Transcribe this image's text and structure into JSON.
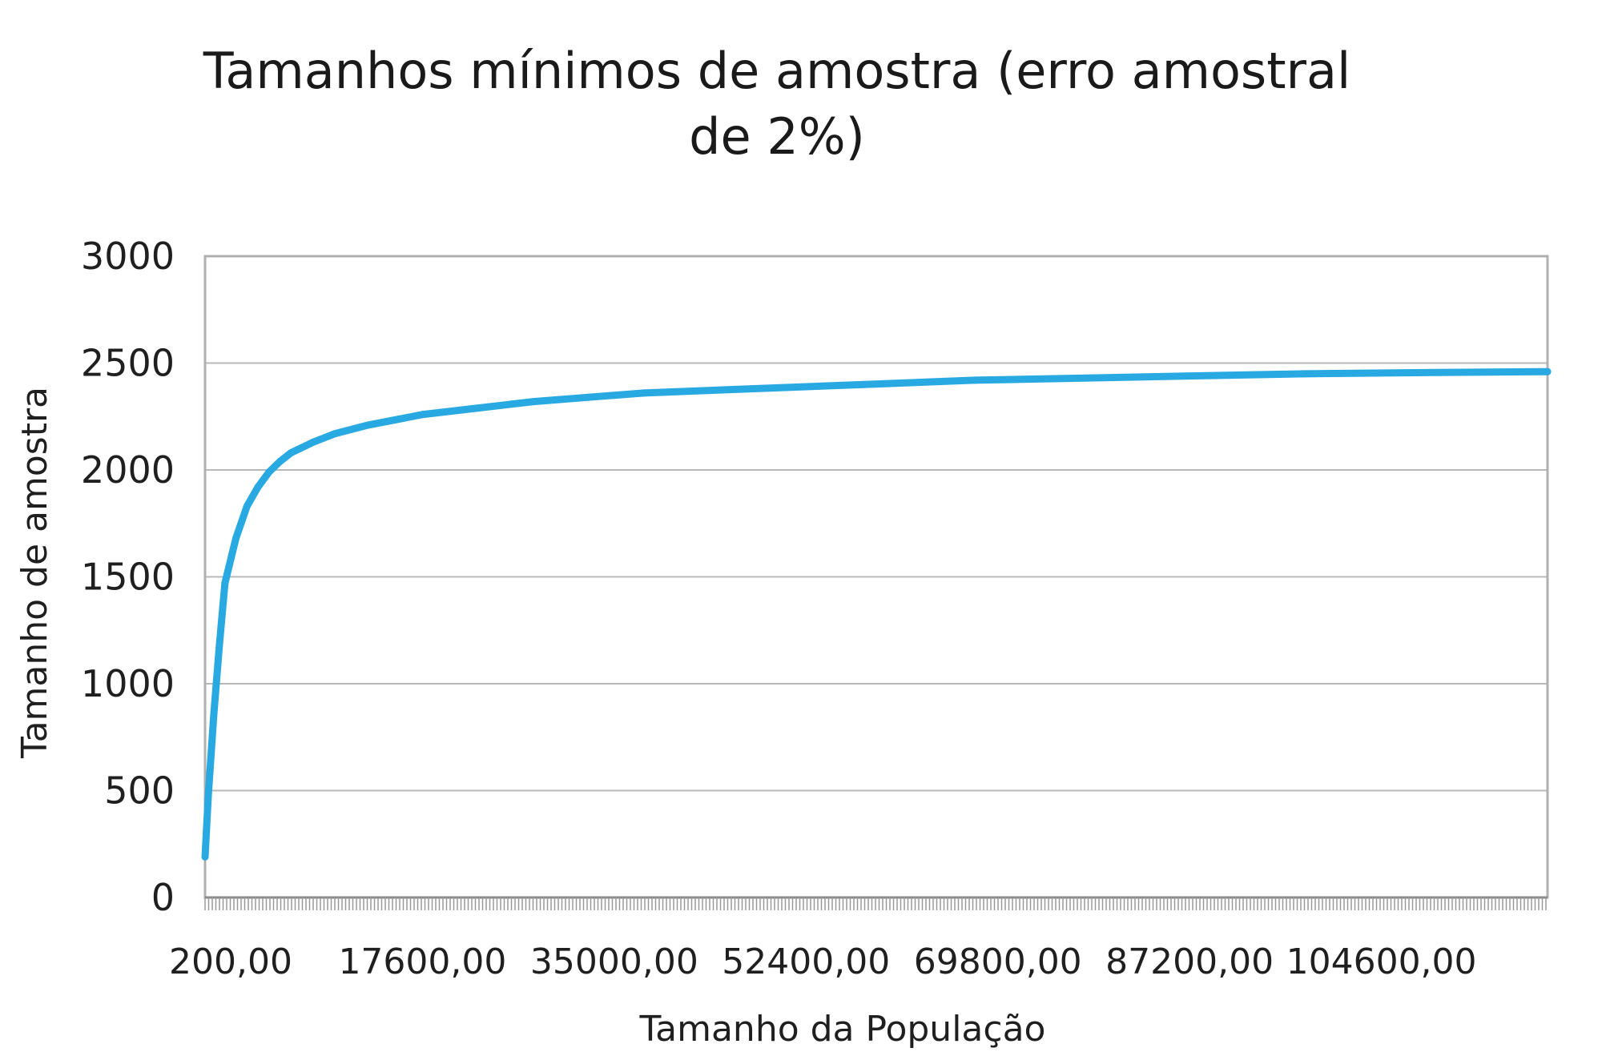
{
  "chart_data": {
    "type": "line",
    "title_lines": [
      "Tamanhos mínimos de amostra (erro amostral",
      "de 2%)"
    ],
    "xlabel": "Tamanho da População",
    "ylabel": "Tamanho de amostra",
    "ylim": [
      0,
      3000
    ],
    "yticks": [
      "0",
      "500",
      "1000",
      "1500",
      "2000",
      "2500",
      "3000"
    ],
    "xlim": [
      200,
      122000
    ],
    "xticks": [
      {
        "value": 200,
        "label": "200,00"
      },
      {
        "value": 17600,
        "label": "17600,00"
      },
      {
        "value": 35000,
        "label": "35000,00"
      },
      {
        "value": 52400,
        "label": "52400,00"
      },
      {
        "value": 69800,
        "label": "69800,00"
      },
      {
        "value": 87200,
        "label": "87200,00"
      },
      {
        "value": 104600,
        "label": "104600,00"
      }
    ],
    "grid": true,
    "line_color": "#29a9e1",
    "series": [
      {
        "x": [
          200,
          500,
          1000,
          1500,
          2000,
          3000,
          4000,
          5000,
          6000,
          7000,
          8000,
          10000,
          12000,
          15000,
          20000,
          25000,
          30000,
          35000,
          40000,
          50000,
          60000,
          70000,
          80000,
          90000,
          100000,
          110000,
          122000
        ],
        "values": [
          190,
          480,
          860,
          1180,
          1470,
          1680,
          1830,
          1920,
          1990,
          2040,
          2080,
          2130,
          2170,
          2210,
          2260,
          2290,
          2320,
          2340,
          2360,
          2380,
          2400,
          2420,
          2430,
          2440,
          2450,
          2455,
          2460
        ]
      }
    ]
  }
}
